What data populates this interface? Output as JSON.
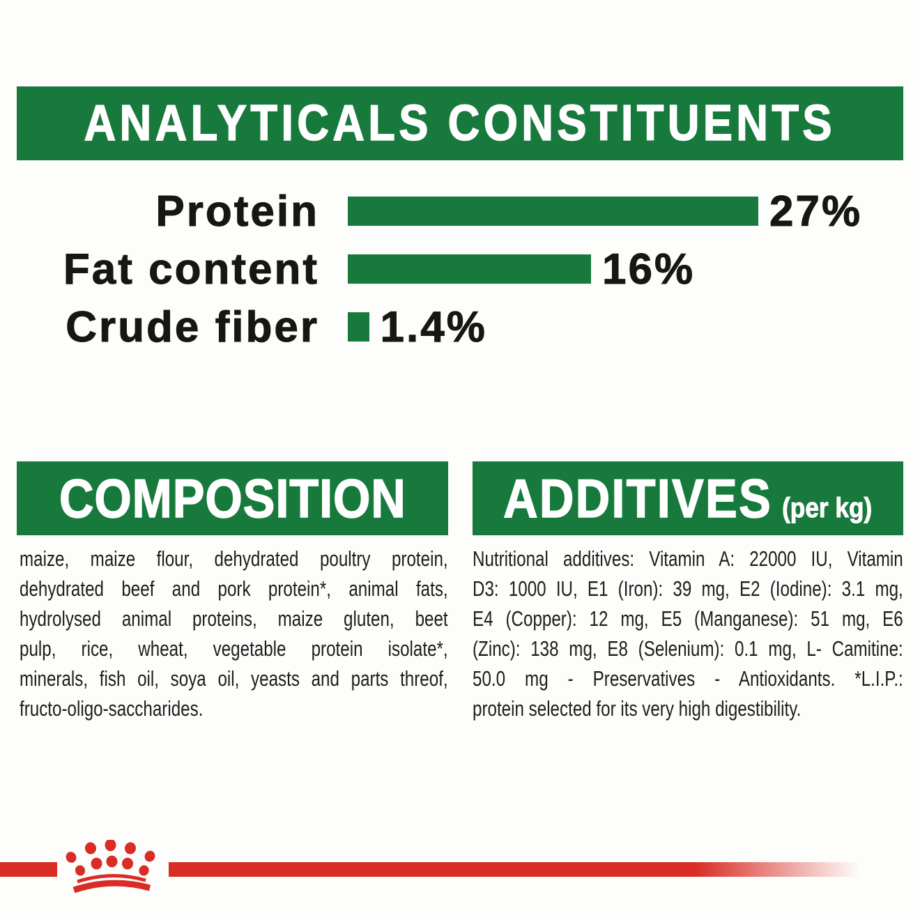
{
  "colors": {
    "green": "#177A3C",
    "red": "#D92C25",
    "text_dark": "#1D1D1B"
  },
  "header": {
    "title": "ANALYTICALS CONSTITUENTS"
  },
  "chart_data": {
    "type": "bar",
    "orientation": "horizontal",
    "title": "ANALYTICALS CONSTITUENTS",
    "categories": [
      "Protein",
      "Fat content",
      "Crude fiber"
    ],
    "values": [
      27,
      16,
      1.4
    ],
    "value_labels": [
      "27%",
      "16%",
      "1.4%"
    ],
    "unit": "%",
    "xlim": [
      0,
      27
    ],
    "bar_color": "#177A3C",
    "grid": false,
    "legend": false
  },
  "composition": {
    "title": "COMPOSITION",
    "lines": [
      "maize, maize flour, dehydrated poultry protein,",
      "dehydrated beef and pork protein*, animal fats,",
      "hydrolysed animal proteins, maize gluten, beet",
      "pulp, rice, wheat, vegetable protein isolate*,",
      "minerals, fish oil, soya oil, yeasts and parts threof,",
      "fructo-oligo-saccharides."
    ]
  },
  "additives": {
    "title": "ADDITIVES",
    "title_suffix": "(per kg)",
    "lines": [
      "Nutritional additives: Vitamin A: 22000 IU, Vitamin",
      "D3: 1000 IU, E1 (Iron): 39 mg, E2 (Iodine): 3.1 mg,",
      "E4 (Copper): 12 mg, E5 (Manganese): 51 mg, E6",
      "(Zinc): 138 mg, E8 (Selenium): 0.1 mg, L- Camitine:",
      "50.0 mg - Preservatives - Antioxidants. *L.I.P.:",
      "protein selected for its very high digestibility."
    ]
  },
  "footer": {
    "brand_icon": "royal-canin-crown"
  }
}
